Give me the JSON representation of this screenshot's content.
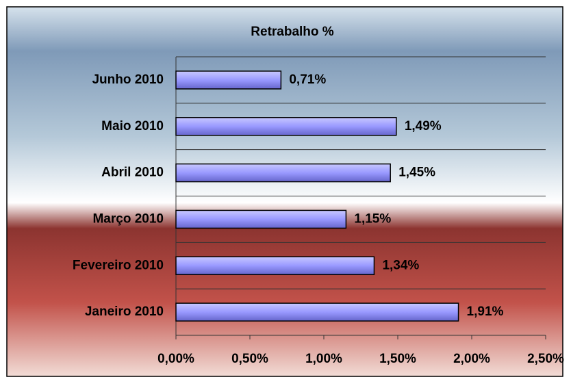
{
  "chart_data": {
    "type": "hbar",
    "title": "Retrabalho %",
    "categories": [
      "Junho 2010",
      "Maio 2010",
      "Abril 2010",
      "Março 2010",
      "Fevereiro 2010",
      "Janeiro 2010"
    ],
    "values": [
      0.71,
      1.49,
      1.45,
      1.15,
      1.34,
      1.91
    ],
    "value_labels": [
      "0,71%",
      "1,49%",
      "1,45%",
      "1,15%",
      "1,34%",
      "1,91%"
    ],
    "color": "#9999ff",
    "xlim": [
      0,
      2.5
    ],
    "xticks": [
      {
        "value": 0,
        "label": "0,00%"
      },
      {
        "value": 0.5,
        "label": "0,50%"
      },
      {
        "value": 1,
        "label": "1,00%"
      },
      {
        "value": 1.5,
        "label": "1,50%"
      },
      {
        "value": 2,
        "label": "2,00%"
      },
      {
        "value": 2.5,
        "label": "2,50%"
      }
    ],
    "grid": true
  }
}
